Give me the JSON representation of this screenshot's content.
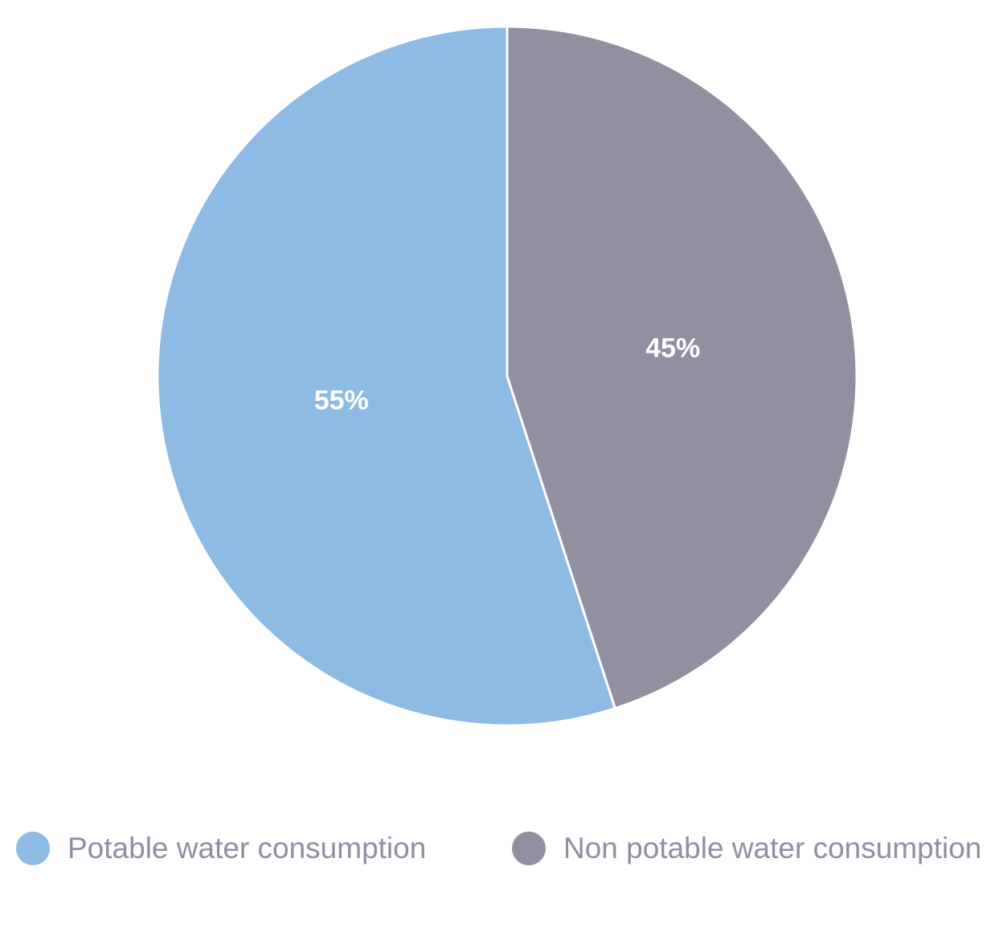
{
  "chart_data": {
    "type": "pie",
    "title": "",
    "slices": [
      {
        "label": "Potable water consumption",
        "value": 55,
        "display": "55%",
        "color": "#8dbbe3"
      },
      {
        "label": "Non potable water consumption",
        "value": 45,
        "display": "45%",
        "color": "#928fa1"
      }
    ],
    "start_angle": "12 o'clock",
    "direction": "counterclockwise for first slice",
    "legend_position": "bottom",
    "label_color": "#ffffff",
    "slice_border_color": "#ffffff"
  },
  "legend": {
    "items": [
      {
        "label": "Potable water consumption",
        "color": "#8dbbe3"
      },
      {
        "label": "Non potable water consumption",
        "color": "#928fa1"
      }
    ]
  }
}
